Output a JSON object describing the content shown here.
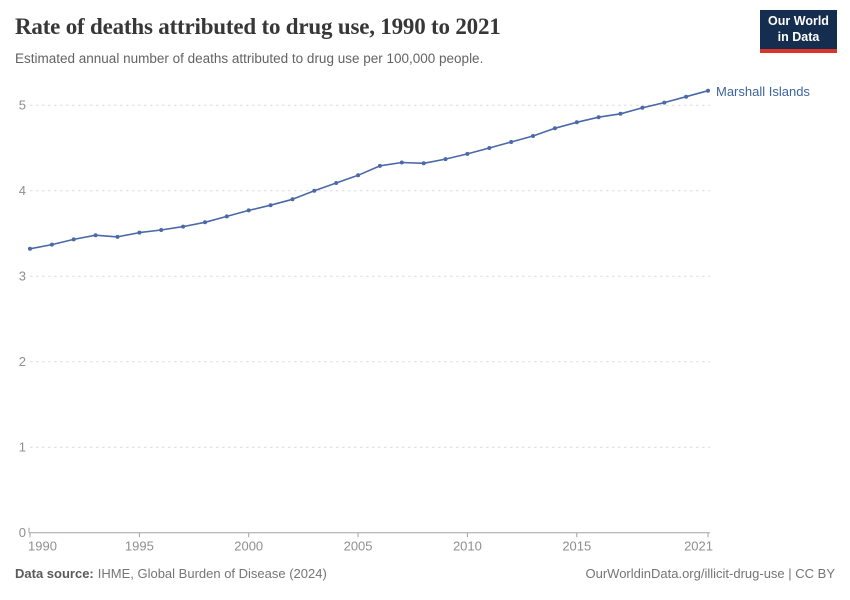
{
  "header": {
    "title": "Rate of deaths attributed to drug use, 1990 to 2021",
    "subtitle": "Estimated annual number of deaths attributed to drug use per 100,000 people."
  },
  "logo": {
    "line1": "Our World",
    "line2": "in Data",
    "bg_color": "#152d4e",
    "accent_color": "#d9352c"
  },
  "chart_data": {
    "type": "line",
    "title": "Rate of deaths attributed to drug use, 1990 to 2021",
    "subtitle": "Estimated annual number of deaths attributed to drug use per 100,000 people.",
    "xlim": [
      1990,
      2021
    ],
    "ylim": [
      0,
      5.4
    ],
    "x_ticks": [
      1990,
      1995,
      2000,
      2005,
      2010,
      2015,
      2021
    ],
    "y_ticks": [
      0,
      1,
      2,
      3,
      4,
      5
    ],
    "grid": "horizontal-dashed",
    "legend_position": "end-of-line-label",
    "series": [
      {
        "name": "Marshall Islands",
        "color": "#4a69a6",
        "x": [
          1990,
          1991,
          1992,
          1993,
          1994,
          1995,
          1996,
          1997,
          1998,
          1999,
          2000,
          2001,
          2002,
          2003,
          2004,
          2005,
          2006,
          2007,
          2008,
          2009,
          2010,
          2011,
          2012,
          2013,
          2014,
          2015,
          2016,
          2017,
          2018,
          2019,
          2020,
          2021
        ],
        "values": [
          3.32,
          3.37,
          3.43,
          3.48,
          3.46,
          3.51,
          3.54,
          3.58,
          3.63,
          3.7,
          3.77,
          3.83,
          3.9,
          4.0,
          4.09,
          4.18,
          4.29,
          4.33,
          4.32,
          4.37,
          4.43,
          4.5,
          4.57,
          4.64,
          4.73,
          4.8,
          4.86,
          4.9,
          4.97,
          5.03,
          5.1,
          5.17
        ]
      }
    ]
  },
  "colors": {
    "line": "#4a69a6",
    "entity_label": "#3d649c",
    "grid": "#dcdcdc",
    "axis": "#a3a3a3",
    "tick_label": "#8f8f8f"
  },
  "footer": {
    "datasource_label": "Data source:",
    "datasource_value": "IHME, Global Burden of Disease (2024)",
    "attribution": "OurWorldinData.org/illicit-drug-use | CC BY"
  }
}
